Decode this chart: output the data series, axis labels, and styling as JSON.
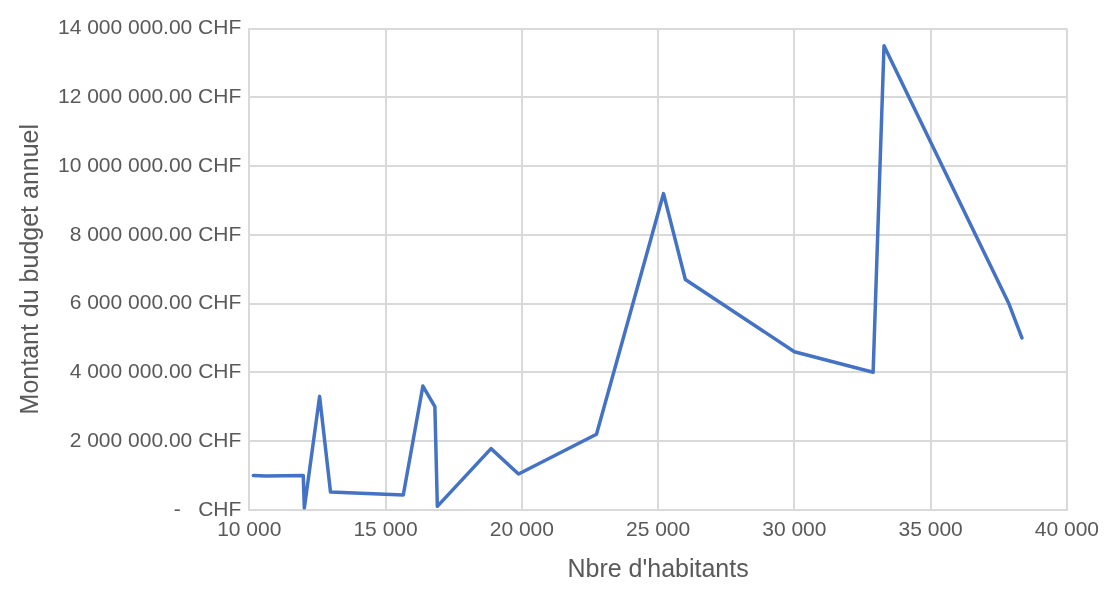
{
  "chart_data": {
    "type": "line",
    "xlabel": "Nbre d'habitants",
    "ylabel": "Montant du budget annuel",
    "x": [
      10150,
      10600,
      11980,
      12020,
      12580,
      12980,
      15650,
      16370,
      16810,
      16900,
      18870,
      19880,
      22740,
      25200,
      26000,
      30000,
      32890,
      33290,
      37870,
      38350
    ],
    "series": [
      {
        "color": "#4472c4",
        "values": [
          1000000,
          980000,
          1000000,
          50000,
          3300000,
          520000,
          430000,
          3600000,
          3000000,
          100000,
          1780000,
          1040000,
          2200000,
          9200000,
          6700000,
          4600000,
          4000000,
          13500000,
          6000000,
          5000000
        ]
      }
    ],
    "xlim": [
      10000,
      40000
    ],
    "xticks": [
      {
        "value": 10000,
        "label": "10 000"
      },
      {
        "value": 15000,
        "label": "15 000"
      },
      {
        "value": 20000,
        "label": "20 000"
      },
      {
        "value": 25000,
        "label": "25 000"
      },
      {
        "value": 30000,
        "label": "30 000"
      },
      {
        "value": 35000,
        "label": "35 000"
      },
      {
        "value": 40000,
        "label": "40 000"
      }
    ],
    "ylim": [
      0,
      14000000
    ],
    "yticks": [
      {
        "value": 0,
        "label": "-   CHF"
      },
      {
        "value": 2000000,
        "label": "2 000 000.00 CHF"
      },
      {
        "value": 4000000,
        "label": "4 000 000.00 CHF"
      },
      {
        "value": 6000000,
        "label": "6 000 000.00 CHF"
      },
      {
        "value": 8000000,
        "label": "8 000 000.00 CHF"
      },
      {
        "value": 10000000,
        "label": "10 000 000.00 CHF"
      },
      {
        "value": 12000000,
        "label": "12 000 000.00 CHF"
      },
      {
        "value": 14000000,
        "label": "14 000 000.00 CHF"
      }
    ],
    "grid": true,
    "legend": false,
    "marker": "none",
    "line_style": "solid"
  }
}
